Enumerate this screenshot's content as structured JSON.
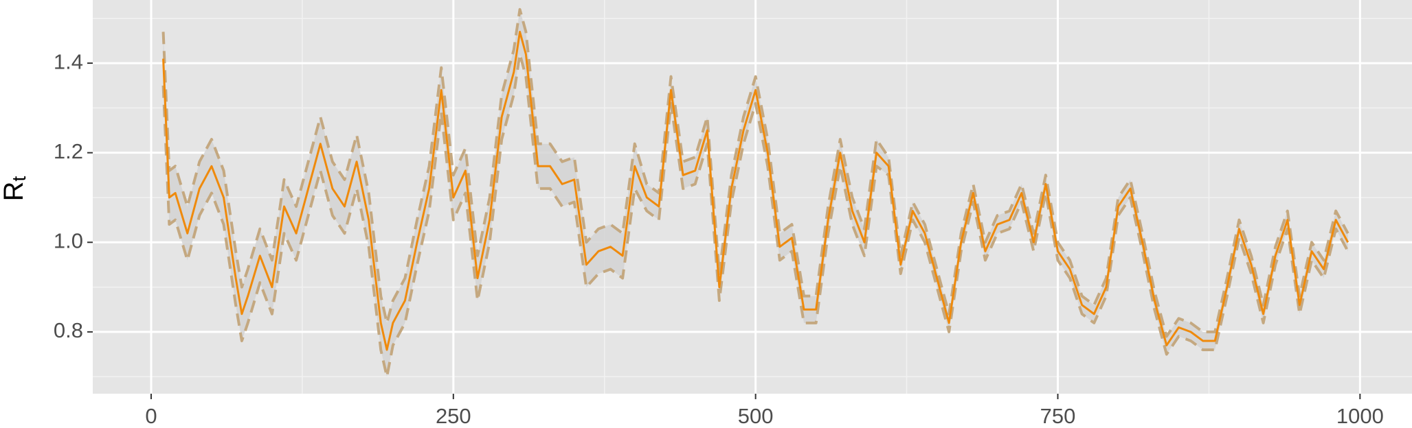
{
  "chart_data": {
    "type": "line",
    "ylabel": "R",
    "ylabel_subscript": "t",
    "x": [
      10,
      15,
      20,
      30,
      40,
      50,
      60,
      70,
      75,
      80,
      90,
      100,
      110,
      120,
      130,
      140,
      150,
      160,
      170,
      180,
      190,
      195,
      200,
      210,
      220,
      230,
      240,
      250,
      260,
      270,
      280,
      290,
      300,
      305,
      310,
      320,
      330,
      340,
      350,
      360,
      370,
      380,
      390,
      400,
      410,
      420,
      430,
      440,
      450,
      460,
      470,
      480,
      490,
      500,
      510,
      520,
      530,
      540,
      550,
      560,
      570,
      580,
      590,
      600,
      610,
      620,
      630,
      640,
      650,
      660,
      670,
      680,
      690,
      700,
      710,
      720,
      730,
      740,
      750,
      760,
      770,
      780,
      790,
      800,
      810,
      820,
      830,
      840,
      850,
      860,
      870,
      880,
      890,
      900,
      910,
      920,
      930,
      940,
      950,
      960,
      970,
      980,
      990
    ],
    "series": [
      {
        "color": "#ef8a0c",
        "dashed": false,
        "values": [
          1.41,
          1.1,
          1.11,
          1.02,
          1.12,
          1.17,
          1.1,
          0.92,
          0.84,
          0.88,
          0.97,
          0.9,
          1.08,
          1.02,
          1.12,
          1.22,
          1.12,
          1.08,
          1.18,
          1.05,
          0.82,
          0.76,
          0.82,
          0.87,
          1.0,
          1.12,
          1.34,
          1.1,
          1.16,
          0.92,
          1.05,
          1.28,
          1.38,
          1.47,
          1.42,
          1.17,
          1.17,
          1.13,
          1.14,
          0.95,
          0.98,
          0.99,
          0.97,
          1.17,
          1.1,
          1.08,
          1.34,
          1.15,
          1.16,
          1.25,
          0.9,
          1.12,
          1.25,
          1.34,
          1.2,
          0.99,
          1.01,
          0.85,
          0.85,
          1.05,
          1.2,
          1.07,
          1.0,
          1.2,
          1.17,
          0.95,
          1.07,
          1.02,
          0.92,
          0.82,
          1.0,
          1.11,
          0.98,
          1.04,
          1.05,
          1.11,
          1.0,
          1.13,
          0.98,
          0.94,
          0.86,
          0.84,
          0.9,
          1.08,
          1.12,
          1.0,
          0.87,
          0.77,
          0.81,
          0.8,
          0.78,
          0.78,
          0.9,
          1.03,
          0.95,
          0.84,
          0.97,
          1.05,
          0.86,
          0.98,
          0.94,
          1.05,
          1.0
        ]
      },
      {
        "color": "#c4a880",
        "dashed": true,
        "values": [
          1.35,
          1.04,
          1.05,
          0.96,
          1.06,
          1.11,
          1.04,
          0.86,
          0.78,
          0.82,
          0.91,
          0.84,
          1.02,
          0.96,
          1.06,
          1.16,
          1.06,
          1.02,
          1.12,
          0.99,
          0.76,
          0.7,
          0.77,
          0.82,
          0.95,
          1.07,
          1.29,
          1.05,
          1.11,
          0.87,
          1.0,
          1.23,
          1.33,
          1.42,
          1.37,
          1.12,
          1.12,
          1.08,
          1.09,
          0.9,
          0.93,
          0.94,
          0.92,
          1.12,
          1.07,
          1.05,
          1.31,
          1.12,
          1.13,
          1.22,
          0.87,
          1.09,
          1.22,
          1.31,
          1.17,
          0.96,
          0.98,
          0.82,
          0.82,
          1.02,
          1.17,
          1.04,
          0.97,
          1.17,
          1.15,
          0.93,
          1.05,
          1.0,
          0.9,
          0.8,
          0.98,
          1.09,
          0.96,
          1.02,
          1.03,
          1.09,
          0.98,
          1.11,
          0.96,
          0.92,
          0.84,
          0.82,
          0.88,
          1.06,
          1.1,
          0.98,
          0.85,
          0.75,
          0.79,
          0.78,
          0.76,
          0.76,
          0.88,
          1.01,
          0.93,
          0.82,
          0.95,
          1.03,
          0.84,
          0.96,
          0.92,
          1.03,
          0.98
        ]
      },
      {
        "color": "#c4a880",
        "dashed": true,
        "values": [
          1.47,
          1.16,
          1.17,
          1.08,
          1.18,
          1.23,
          1.16,
          0.98,
          0.9,
          0.94,
          1.03,
          0.96,
          1.14,
          1.08,
          1.18,
          1.28,
          1.18,
          1.14,
          1.24,
          1.11,
          0.88,
          0.82,
          0.87,
          0.92,
          1.05,
          1.17,
          1.39,
          1.15,
          1.21,
          0.97,
          1.1,
          1.33,
          1.43,
          1.52,
          1.47,
          1.22,
          1.22,
          1.18,
          1.19,
          1.0,
          1.03,
          1.04,
          1.02,
          1.22,
          1.13,
          1.11,
          1.37,
          1.18,
          1.19,
          1.28,
          0.93,
          1.15,
          1.28,
          1.37,
          1.23,
          1.02,
          1.04,
          0.88,
          0.88,
          1.08,
          1.23,
          1.1,
          1.03,
          1.23,
          1.19,
          0.97,
          1.09,
          1.04,
          0.94,
          0.84,
          1.02,
          1.13,
          1.0,
          1.06,
          1.07,
          1.13,
          1.02,
          1.15,
          1.0,
          0.96,
          0.88,
          0.86,
          0.92,
          1.1,
          1.14,
          1.02,
          0.89,
          0.79,
          0.83,
          0.82,
          0.8,
          0.8,
          0.92,
          1.05,
          0.97,
          0.86,
          0.99,
          1.07,
          0.88,
          1.0,
          0.96,
          1.07,
          1.02
        ]
      }
    ],
    "ribbon": {
      "fill": "#d4d4d4",
      "lower": 1,
      "upper": 2
    },
    "xlim": [
      -48.3,
      1043
    ],
    "ylim": [
      0.662,
      1.541
    ],
    "xticks": [
      0,
      250,
      500,
      750,
      1000
    ],
    "yticks": [
      0.8,
      {
        "value": 1,
        "label": "1.0"
      },
      1.2,
      1.4
    ],
    "x_minor_grid": [
      125,
      375,
      625,
      875
    ],
    "y_minor_grid": [
      0.7,
      0.9,
      1.1,
      1.3,
      1.5
    ],
    "grid": true,
    "panel_color": "#e5e5e5"
  }
}
